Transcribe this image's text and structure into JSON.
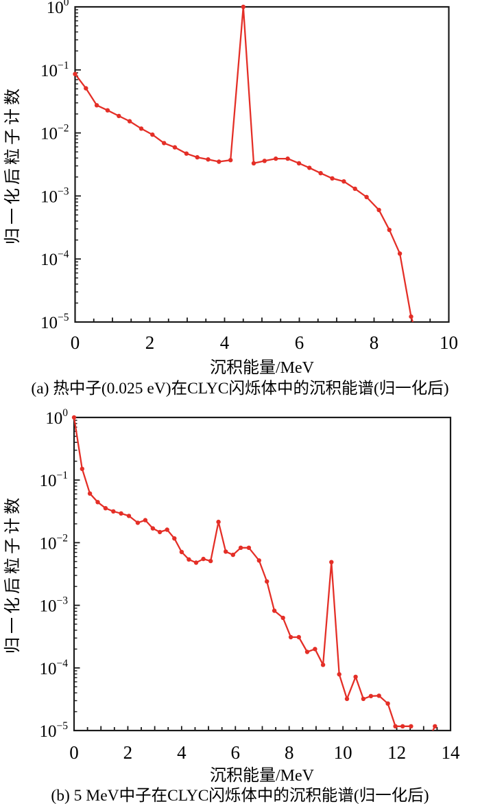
{
  "figure": {
    "background": "#ffffff",
    "axis_color": "#1a1a1a",
    "text_color": "#000000"
  },
  "chart_data": [
    {
      "id": "a",
      "type": "line",
      "title": "(a) 热中子(0.025 eV)在CLYC闪烁体中的沉积能谱(归一化后)",
      "xlabel": "沉积能量/MeV",
      "ylabel": "归一化后粒子计数",
      "line_color": "#e42f27",
      "marker": "circle",
      "grid": false,
      "legend": null,
      "x_range": [
        0,
        10
      ],
      "x_major_ticks": [
        0,
        2,
        4,
        6,
        8,
        10
      ],
      "x_minor_step": 0.5,
      "y_scale": "log",
      "y_range": [
        1e-05,
        1
      ],
      "y_tick_exponents": [
        0,
        -1,
        -2,
        -3,
        -4,
        -5
      ],
      "points": [
        [
          0.0,
          0.086
        ],
        [
          0.29,
          0.051
        ],
        [
          0.58,
          0.0275
        ],
        [
          0.87,
          0.0228
        ],
        [
          1.17,
          0.0186
        ],
        [
          1.46,
          0.0153
        ],
        [
          1.77,
          0.0117
        ],
        [
          2.07,
          0.0094
        ],
        [
          2.38,
          0.0069
        ],
        [
          2.67,
          0.0059
        ],
        [
          2.98,
          0.0047
        ],
        [
          3.27,
          0.0041
        ],
        [
          3.56,
          0.0038
        ],
        [
          3.85,
          0.0035
        ],
        [
          4.16,
          0.0037
        ],
        [
          4.5,
          1.0
        ],
        [
          4.78,
          0.0033
        ],
        [
          5.07,
          0.0036
        ],
        [
          5.37,
          0.0039
        ],
        [
          5.69,
          0.0039
        ],
        [
          5.99,
          0.0033
        ],
        [
          6.27,
          0.0028
        ],
        [
          6.57,
          0.0023
        ],
        [
          6.88,
          0.0019
        ],
        [
          7.19,
          0.0017
        ],
        [
          7.49,
          0.0013
        ],
        [
          7.8,
          0.00096
        ],
        [
          8.13,
          0.0006
        ],
        [
          8.41,
          0.00029
        ],
        [
          8.69,
          0.000122
        ],
        [
          8.99,
          1.22e-05
        ],
        [
          9.2,
          4.8e-06
        ]
      ]
    },
    {
      "id": "b",
      "type": "line",
      "title": "(b) 5 MeV中子在CLYC闪烁体中的沉积能谱(归一化后)",
      "xlabel": "沉积能量/MeV",
      "ylabel": "归一化后粒子计数",
      "line_color": "#e42f27",
      "marker": "circle",
      "grid": false,
      "legend": null,
      "x_range": [
        0,
        14
      ],
      "x_major_ticks": [
        0,
        2,
        4,
        6,
        8,
        10,
        12,
        14
      ],
      "x_minor_step": 0.5,
      "y_scale": "log",
      "y_range": [
        1e-05,
        1
      ],
      "y_tick_exponents": [
        0,
        -1,
        -2,
        -3,
        -4,
        -5
      ],
      "points": [
        [
          0.0,
          1.0
        ],
        [
          0.3,
          0.151
        ],
        [
          0.59,
          0.061
        ],
        [
          0.88,
          0.0445
        ],
        [
          1.17,
          0.0355
        ],
        [
          1.46,
          0.0316
        ],
        [
          1.75,
          0.0293
        ],
        [
          2.04,
          0.0268
        ],
        [
          2.37,
          0.0208
        ],
        [
          2.65,
          0.0229
        ],
        [
          2.93,
          0.0169
        ],
        [
          3.19,
          0.0148
        ],
        [
          3.46,
          0.0161
        ],
        [
          3.73,
          0.0117
        ],
        [
          4.0,
          0.0071
        ],
        [
          4.27,
          0.0054
        ],
        [
          4.54,
          0.0048
        ],
        [
          4.81,
          0.0055
        ],
        [
          5.08,
          0.0051
        ],
        [
          5.37,
          0.0215
        ],
        [
          5.64,
          0.0072
        ],
        [
          5.91,
          0.0064
        ],
        [
          6.2,
          0.0083
        ],
        [
          6.5,
          0.0083
        ],
        [
          6.88,
          0.0052
        ],
        [
          7.17,
          0.0024
        ],
        [
          7.45,
          0.00082
        ],
        [
          7.77,
          0.00063
        ],
        [
          8.06,
          0.00031
        ],
        [
          8.36,
          0.00031
        ],
        [
          8.67,
          0.00018
        ],
        [
          8.96,
          0.0002
        ],
        [
          9.26,
          0.000112
        ],
        [
          9.57,
          0.0049
        ],
        [
          9.86,
          7.9e-05
        ],
        [
          10.15,
          3.2e-05
        ],
        [
          10.47,
          7.2e-05
        ],
        [
          10.76,
          3.2e-05
        ],
        [
          11.04,
          3.55e-05
        ],
        [
          11.34,
          3.6e-05
        ],
        [
          11.67,
          2.7e-05
        ],
        [
          11.95,
          1.17e-05
        ],
        [
          12.22,
          1.17e-05
        ],
        [
          12.53,
          1.17e-05
        ],
        [
          12.82,
          null
        ],
        [
          13.12,
          6.5e-06
        ],
        [
          13.42,
          1.17e-05
        ]
      ]
    }
  ]
}
